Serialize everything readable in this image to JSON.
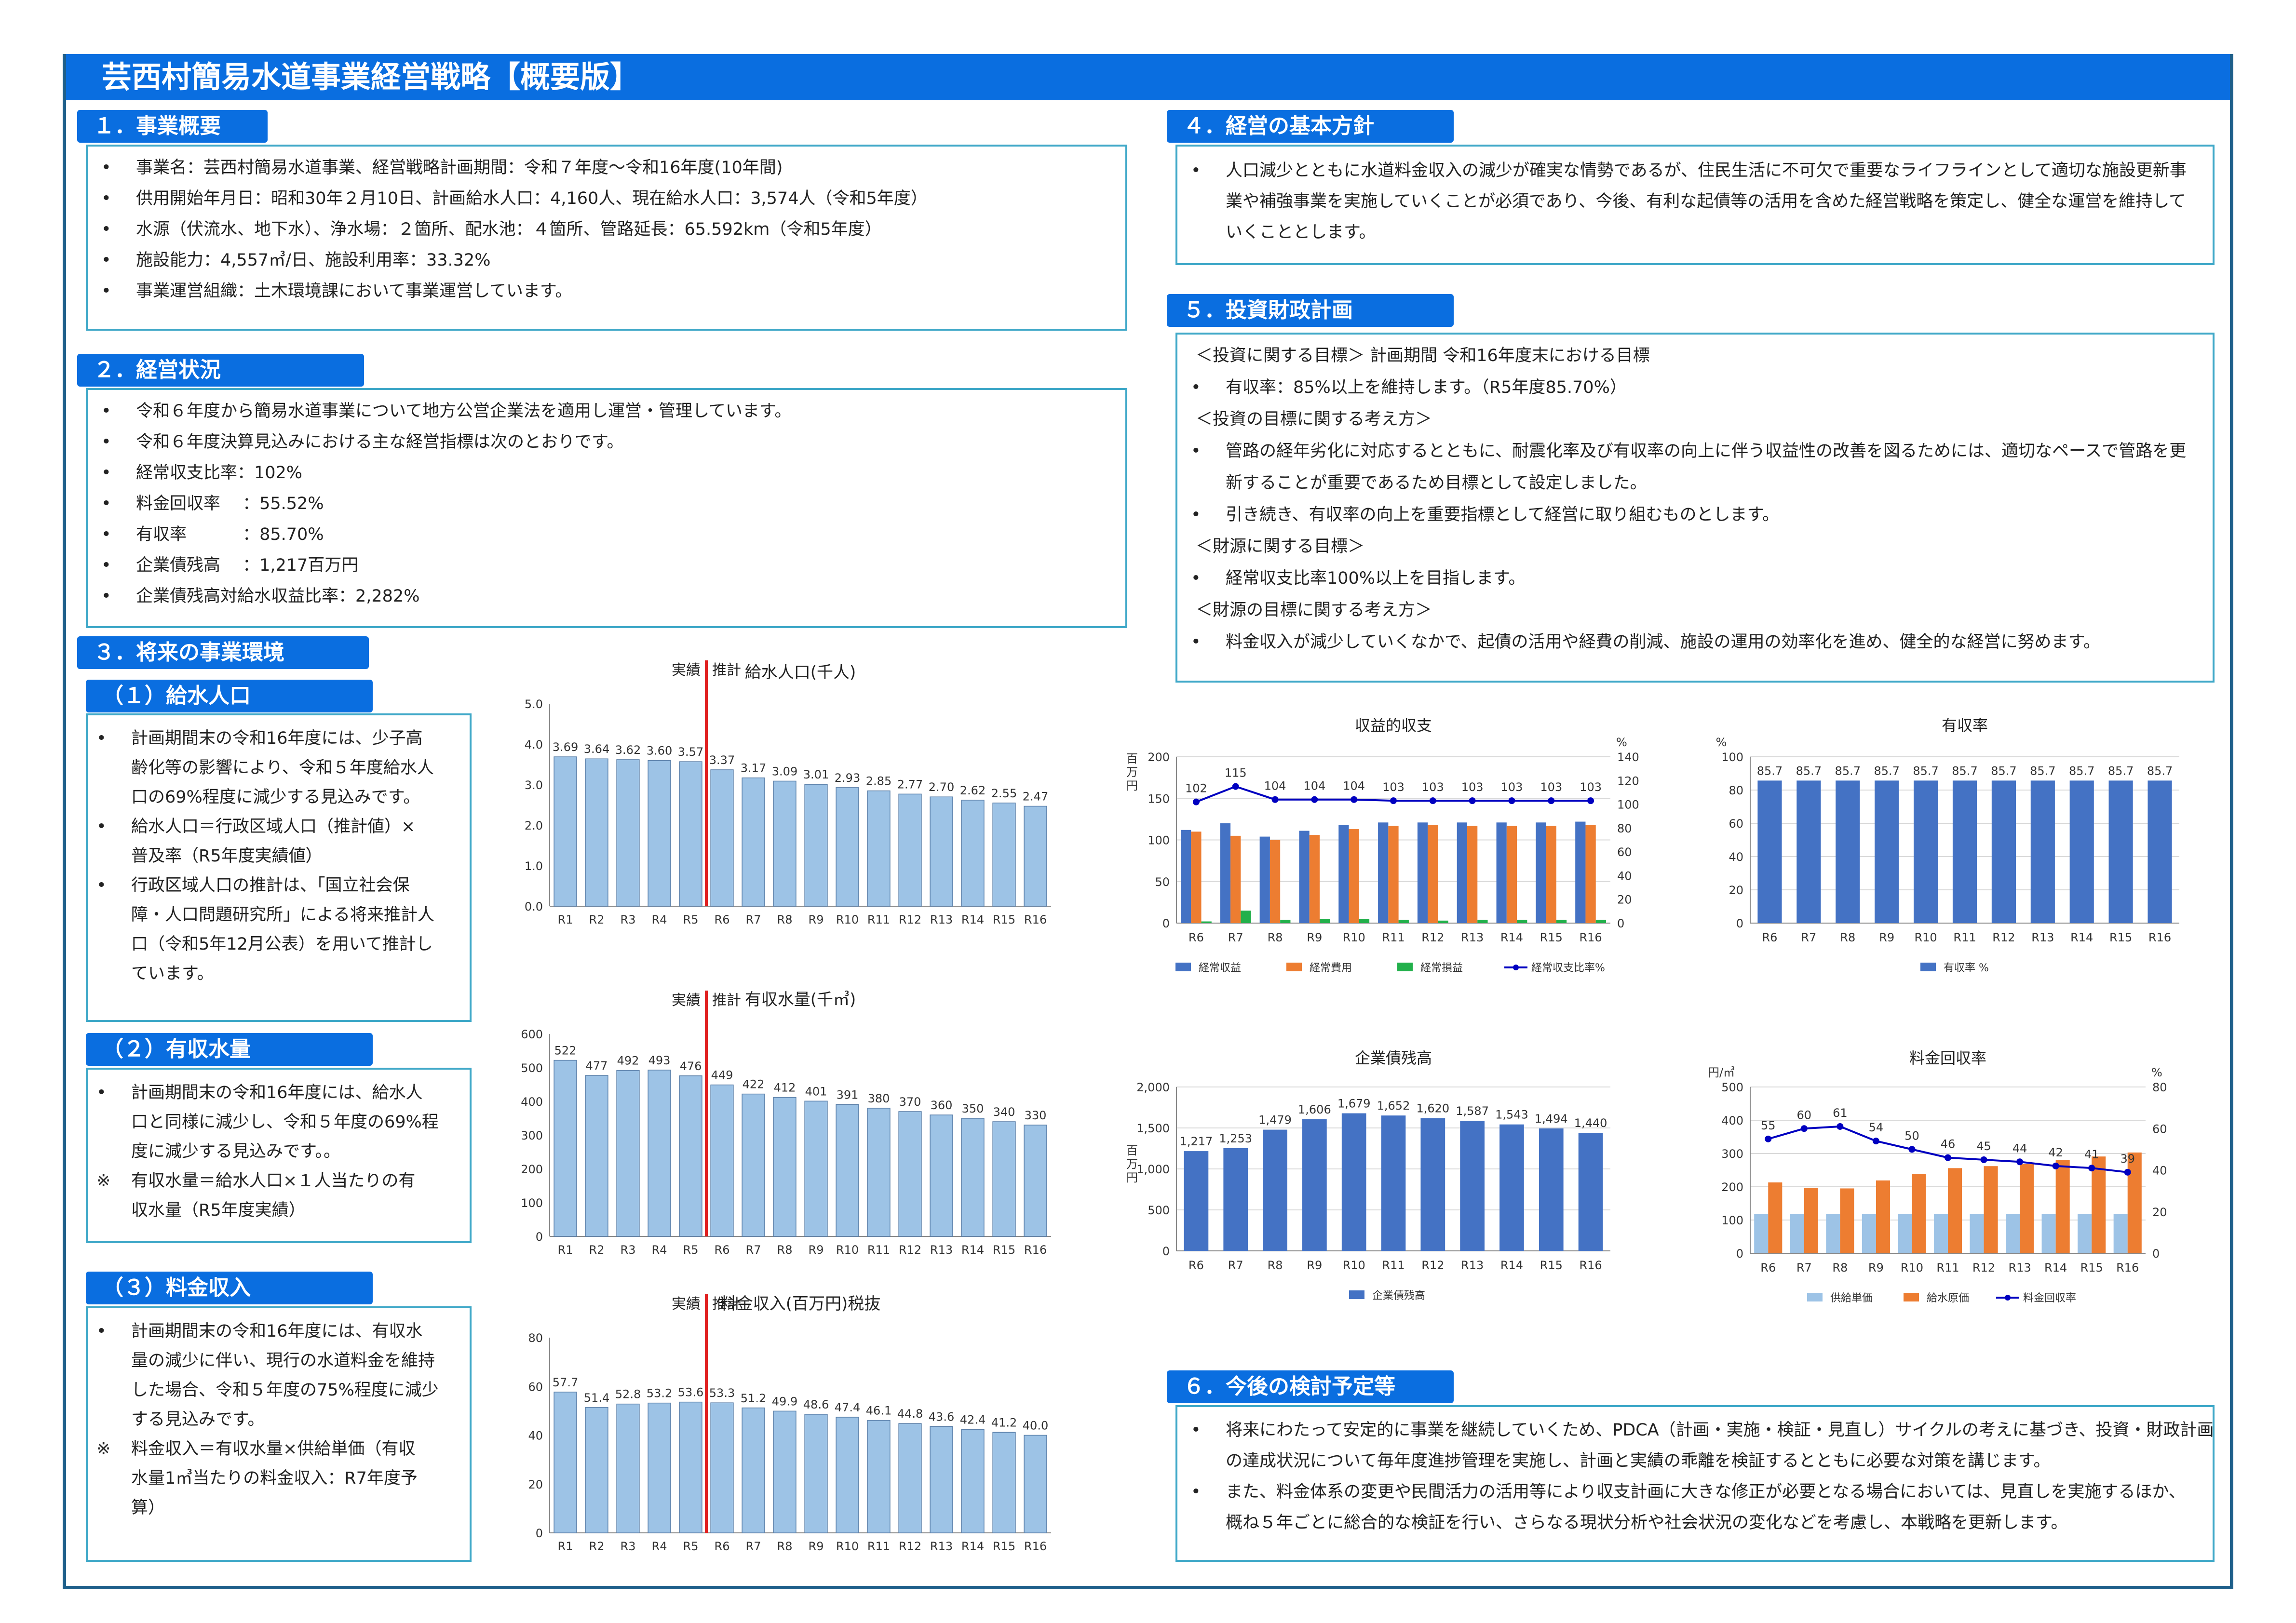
{
  "title": "芸西村簡易水道事業経営戦略【概要版】",
  "sec1": {
    "heading": "１．事業概要",
    "items": [
      "事業名：芸西村簡易水道事業、経営戦略計画期間：令和７年度～令和16年度(10年間)",
      "供用開始年月日：昭和30年２月10日、計画給水人口：4,160人、現在給水人口：3,574人（令和5年度）",
      "水源（伏流水、地下水）、浄水場：２箇所、配水池：４箇所、管路延長：65.592km（令和5年度）",
      "施設能力：4,557㎥/日、施設利用率：33.32%",
      "事業運営組織：土木環境課において事業運営しています。"
    ]
  },
  "sec2": {
    "heading": "２．経営状況",
    "items": [
      "令和６年度から簡易水道事業について地方公営企業法を適用し運営・管理しています。",
      "令和６年度決算見込みにおける主な経営指標は次のとおりです。",
      "経常収支比率：102%",
      "料金回収率　 ：55.52%",
      "有収率　　　 ：85.70%",
      "企業債残高　 ：1,217百万円",
      "企業債残高対給水収益比率：2,282%"
    ]
  },
  "sec3": {
    "heading": "３．将来の事業環境",
    "sub1": {
      "heading": "（１）給水人口",
      "items": [
        {
          "b": "•",
          "lines": [
            "計画期間末の令和16年度には、少子高",
            "齢化等の影響により、令和５年度給水人",
            "口の69%程度に減少する見込みです。"
          ]
        },
        {
          "b": "•",
          "lines": [
            "給水人口＝行政区域人口（推計値）×",
            "普及率（R5年度実績値）"
          ]
        },
        {
          "b": "•",
          "lines": [
            "行政区域人口の推計は、「国立社会保",
            "障・人口問題研究所」による将来推計人",
            "口（令和5年12月公表）を用いて推計し",
            "ています。"
          ]
        }
      ]
    },
    "sub2": {
      "heading": "（２）有収水量",
      "items": [
        {
          "b": "•",
          "lines": [
            "計画期間末の令和16年度には、給水人",
            "口と同様に減少し、令和５年度の69%程",
            "度に減少する見込みです。。"
          ]
        },
        {
          "b": "※",
          "lines": [
            "有収水量＝給水人口×１人当たりの有",
            "収水量（R5年度実績）"
          ]
        }
      ]
    },
    "sub3": {
      "heading": "（３）料金収入",
      "items": [
        {
          "b": "•",
          "lines": [
            "計画期間末の令和16年度には、有収水",
            "量の減少に伴い、現行の水道料金を維持",
            "した場合、令和５年度の75%程度に減少",
            "する見込みです。"
          ]
        },
        {
          "b": "※",
          "lines": [
            "料金収入＝有収水量×供給単価（有収",
            "水量1㎥当たりの料金収入：R7年度予",
            "算）"
          ]
        }
      ]
    }
  },
  "sec4": {
    "heading": "４．経営の基本方針",
    "lines": [
      "人口減少とともに水道料金収入の減少が確実な情勢であるが、住民生活に不可欠で重要なライフラインとして適切な施設更新事",
      "業や補強事業を実施していくことが必須であり、今後、有利な起債等の活用を含めた経営戦略を策定し、健全な運営を維持して",
      "いくこととします。"
    ]
  },
  "sec5": {
    "heading": "５．投資財政計画",
    "rows": [
      {
        "b": "",
        "t": "＜投資に関する目標＞ 計画期間  令和16年度末における目標"
      },
      {
        "b": "•",
        "t": "有収率：85%以上を維持します。（R5年度85.70%）"
      },
      {
        "b": "",
        "t": "＜投資の目標に関する考え方＞"
      },
      {
        "b": "•",
        "t": "管路の経年劣化に対応するとともに、耐震化率及び有収率の向上に伴う収益性の改善を図るためには、適切なペースで管路を更"
      },
      {
        "b": "",
        "t": "新することが重要であるため目標として設定しました。"
      },
      {
        "b": "•",
        "t": "引き続き、有収率の向上を重要指標として経営に取り組むものとします。"
      },
      {
        "b": "",
        "t": "＜財源に関する目標＞"
      },
      {
        "b": "•",
        "t": "経常収支比率100%以上を目指します。"
      },
      {
        "b": "",
        "t": "＜財源の目標に関する考え方＞"
      },
      {
        "b": "•",
        "t": "料金収入が減少していくなかで、起債の活用や経費の削減、施設の運用の効率化を進め、健全的な経営に努めます。"
      }
    ]
  },
  "sec6": {
    "heading": "６．今後の検討予定等",
    "rows": [
      {
        "b": "•",
        "t": "将来にわたって安定的に事業を継続していくため、PDCA（計画・実施・検証・見直し）サイクルの考えに基づき、投資・財政計画"
      },
      {
        "b": "",
        "t": "の達成状況について毎年度進捗管理を実施し、計画と実績の乖離を検証するとともに必要な対策を講じます。"
      },
      {
        "b": "•",
        "t": "また、料金体系の変更や民間活力の活用等により収支計画に大きな修正が必要となる場合においては、見直しを実施するほか、"
      },
      {
        "b": "",
        "t": "概ね５年ごとに総合的な検証を行い、さらなる現状分析や社会状況の変化などを考慮し、本戦略を更新します。"
      }
    ]
  },
  "chart_data": [
    {
      "id": "pop",
      "type": "bar",
      "title": "給水人口(千人)",
      "actual_label": "実績",
      "forecast_label": "推計",
      "categories": [
        "R1",
        "R2",
        "R3",
        "R4",
        "R5",
        "R6",
        "R7",
        "R8",
        "R9",
        "R10",
        "R11",
        "R12",
        "R13",
        "R14",
        "R15",
        "R16"
      ],
      "values": [
        3.69,
        3.64,
        3.62,
        3.6,
        3.57,
        3.37,
        3.17,
        3.09,
        3.01,
        2.93,
        2.85,
        2.77,
        2.7,
        2.62,
        2.55,
        2.47
      ],
      "labels": [
        "3.69",
        "3.64",
        "3.62",
        "3.60",
        "3.57",
        "3.37",
        "3.17",
        "3.09",
        "3.01",
        "2.93",
        "2.85",
        "2.77",
        "2.70",
        "2.62",
        "2.55",
        "2.47"
      ],
      "ylim": [
        0,
        5
      ],
      "yticks": [
        "0.0",
        "1.0",
        "2.0",
        "3.0",
        "4.0",
        "5.0"
      ],
      "color": "#9dc3e6"
    },
    {
      "id": "vol",
      "type": "bar",
      "title": "有収水量(千㎥)",
      "actual_label": "実績",
      "forecast_label": "推計",
      "categories": [
        "R1",
        "R2",
        "R3",
        "R4",
        "R5",
        "R6",
        "R7",
        "R8",
        "R9",
        "R10",
        "R11",
        "R12",
        "R13",
        "R14",
        "R15",
        "R16"
      ],
      "values": [
        522,
        477,
        492,
        493,
        476,
        449,
        422,
        412,
        401,
        391,
        380,
        370,
        360,
        350,
        340,
        330
      ],
      "labels": [
        "522",
        "477",
        "492",
        "493",
        "476",
        "449",
        "422",
        "412",
        "401",
        "391",
        "380",
        "370",
        "360",
        "350",
        "340",
        "330"
      ],
      "ylim": [
        0,
        600
      ],
      "yticks": [
        "0",
        "100",
        "200",
        "300",
        "400",
        "500",
        "600"
      ],
      "color": "#9dc3e6"
    },
    {
      "id": "rev",
      "type": "bar",
      "title": "料金収入(百万円)税抜",
      "actual_label": "実績",
      "forecast_label": "推計",
      "categories": [
        "R1",
        "R2",
        "R3",
        "R4",
        "R5",
        "R6",
        "R7",
        "R8",
        "R9",
        "R10",
        "R11",
        "R12",
        "R13",
        "R14",
        "R15",
        "R16"
      ],
      "values": [
        57.7,
        51.4,
        52.8,
        53.2,
        53.6,
        53.3,
        51.2,
        49.9,
        48.6,
        47.4,
        46.1,
        44.8,
        43.6,
        42.4,
        41.2,
        40.0
      ],
      "labels": [
        "57.7",
        "51.4",
        "52.8",
        "53.2",
        "53.6",
        "53.3",
        "51.2",
        "49.9",
        "48.6",
        "47.4",
        "46.1",
        "44.8",
        "43.6",
        "42.4",
        "41.2",
        "40.0"
      ],
      "ylim": [
        0,
        80
      ],
      "yticks": [
        "0",
        "20",
        "40",
        "60",
        "80"
      ],
      "color": "#9dc3e6"
    },
    {
      "id": "inc",
      "type": "bar",
      "title": "収益的収支",
      "yunit": "百万円",
      "y2unit": "%",
      "categories": [
        "R6",
        "R7",
        "R8",
        "R9",
        "R10",
        "R11",
        "R12",
        "R13",
        "R14",
        "R15",
        "R16"
      ],
      "ylim": [
        0,
        200
      ],
      "yticks": [
        "0",
        "50",
        "100",
        "150",
        "200"
      ],
      "y2lim": [
        0,
        140
      ],
      "y2ticks": [
        "0",
        "20",
        "40",
        "60",
        "80",
        "100",
        "120",
        "140"
      ],
      "series": [
        {
          "name": "経常収益",
          "color": "#4472c4",
          "values": [
            112,
            120,
            104,
            111,
            118,
            121,
            121,
            121,
            121,
            121,
            122
          ]
        },
        {
          "name": "経常費用",
          "color": "#ed7d31",
          "values": [
            110,
            105,
            100,
            106,
            113,
            117,
            118,
            117,
            117,
            117,
            118
          ]
        },
        {
          "name": "経常損益",
          "color": "#22b04b",
          "values": [
            2,
            15,
            4,
            5,
            5,
            4,
            3,
            4,
            4,
            4,
            4
          ]
        }
      ],
      "line": {
        "name": "経常収支比率%",
        "color": "#0000c0",
        "values": [
          102,
          115,
          104,
          104,
          104,
          103,
          103,
          103,
          103,
          103,
          103
        ],
        "labels": [
          "102",
          "115",
          "104",
          "104",
          "104",
          "103",
          "103",
          "103",
          "103",
          "103",
          "103"
        ]
      }
    },
    {
      "id": "yus",
      "type": "bar",
      "title": "有収率",
      "yunit": "%",
      "categories": [
        "R6",
        "R7",
        "R8",
        "R9",
        "R10",
        "R11",
        "R12",
        "R13",
        "R14",
        "R15",
        "R16"
      ],
      "ylim": [
        0,
        100
      ],
      "yticks": [
        "0",
        "20",
        "40",
        "60",
        "80",
        "100"
      ],
      "series": [
        {
          "name": "有収率 %",
          "color": "#4472c4",
          "values": [
            85.7,
            85.7,
            85.7,
            85.7,
            85.7,
            85.7,
            85.7,
            85.7,
            85.7,
            85.7,
            85.7
          ],
          "labels": [
            "85.7",
            "85.7",
            "85.7",
            "85.7",
            "85.7",
            "85.7",
            "85.7",
            "85.7",
            "85.7",
            "85.7",
            "85.7"
          ]
        }
      ]
    },
    {
      "id": "debt",
      "type": "bar",
      "title": "企業債残高",
      "yunit": "百万円",
      "categories": [
        "R6",
        "R7",
        "R8",
        "R9",
        "R10",
        "R11",
        "R12",
        "R13",
        "R14",
        "R15",
        "R16"
      ],
      "ylim": [
        0,
        2000
      ],
      "yticks": [
        "0",
        "500",
        "1,000",
        "1,500",
        "2,000"
      ],
      "series": [
        {
          "name": "企業債残高",
          "color": "#4472c4",
          "values": [
            1217,
            1253,
            1479,
            1606,
            1679,
            1652,
            1620,
            1587,
            1543,
            1494,
            1440
          ],
          "labels": [
            "1,217",
            "1,253",
            "1,479",
            "1,606",
            "1,679",
            "1,652",
            "1,620",
            "1,587",
            "1,543",
            "1,494",
            "1,440"
          ]
        }
      ]
    },
    {
      "id": "rate",
      "type": "bar",
      "title": "料金回収率",
      "yunit": "円/㎥",
      "y2unit": "%",
      "categories": [
        "R6",
        "R7",
        "R8",
        "R9",
        "R10",
        "R11",
        "R12",
        "R13",
        "R14",
        "R15",
        "R16"
      ],
      "ylim": [
        0,
        500
      ],
      "yticks": [
        "0",
        "100",
        "200",
        "300",
        "400",
        "500"
      ],
      "y2lim": [
        0,
        80
      ],
      "y2ticks": [
        "0",
        "20",
        "40",
        "60",
        "80"
      ],
      "series": [
        {
          "name": "供給単価",
          "color": "#9dc3e6",
          "values": [
            118,
            118,
            118,
            118,
            118,
            118,
            118,
            118,
            118,
            118,
            118
          ]
        },
        {
          "name": "給水原価",
          "color": "#ed7d31",
          "values": [
            213,
            197,
            195,
            219,
            239,
            256,
            262,
            268,
            280,
            291,
            303
          ]
        }
      ],
      "line": {
        "name": "料金回収率",
        "color": "#0000c0",
        "values": [
          55,
          60,
          61,
          54,
          50,
          46,
          45,
          44,
          42,
          41,
          39
        ],
        "labels": [
          "55",
          "60",
          "61",
          "54",
          "50",
          "46",
          "45",
          "44",
          "42",
          "41",
          "39"
        ]
      }
    }
  ]
}
